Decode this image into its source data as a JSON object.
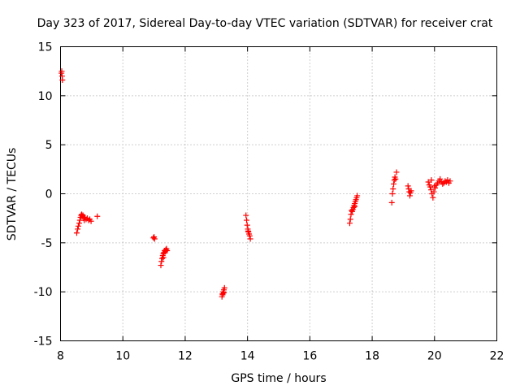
{
  "chart_data": {
    "type": "scatter",
    "title": "Day 323 of 2017, Sidereal Day-to-day VTEC variation (SDTVAR) for receiver crat",
    "xlabel": "GPS time / hours",
    "ylabel": "SDTVAR / TECUs",
    "xlim": [
      8,
      22
    ],
    "ylim": [
      -15,
      15
    ],
    "xticks": [
      8,
      10,
      12,
      14,
      16,
      18,
      20,
      22
    ],
    "yticks": [
      -15,
      -10,
      -5,
      0,
      5,
      10,
      15
    ],
    "xtick_labels": [
      "8",
      "10",
      "12",
      "14",
      "16",
      "18",
      "20",
      "22"
    ],
    "ytick_labels": [
      "-15",
      "-10",
      "-5",
      "0",
      "5",
      "10",
      "15"
    ],
    "grid": true,
    "marker": "+",
    "color": "#ff0000",
    "series": [
      {
        "name": "SDTVAR",
        "points": [
          [
            8.03,
            12.3
          ],
          [
            8.05,
            12.0
          ],
          [
            8.06,
            11.6
          ],
          [
            8.04,
            12.5
          ],
          [
            8.52,
            -4.0
          ],
          [
            8.55,
            -3.6
          ],
          [
            8.57,
            -3.3
          ],
          [
            8.6,
            -3.0
          ],
          [
            8.62,
            -2.7
          ],
          [
            8.64,
            -2.4
          ],
          [
            8.66,
            -2.2
          ],
          [
            8.7,
            -2.3
          ],
          [
            8.74,
            -2.5
          ],
          [
            8.78,
            -2.4
          ],
          [
            8.82,
            -2.6
          ],
          [
            8.86,
            -2.5
          ],
          [
            8.9,
            -2.7
          ],
          [
            8.94,
            -2.6
          ],
          [
            8.98,
            -2.8
          ],
          [
            8.68,
            -2.1
          ],
          [
            8.72,
            -2.2
          ],
          [
            8.76,
            -2.7
          ],
          [
            9.18,
            -2.3
          ],
          [
            10.98,
            -4.5
          ],
          [
            11.0,
            -4.4
          ],
          [
            11.02,
            -4.6
          ],
          [
            11.22,
            -7.3
          ],
          [
            11.24,
            -6.9
          ],
          [
            11.26,
            -6.6
          ],
          [
            11.28,
            -6.3
          ],
          [
            11.3,
            -6.1
          ],
          [
            11.32,
            -6.0
          ],
          [
            11.34,
            -5.8
          ],
          [
            11.36,
            -5.9
          ],
          [
            11.38,
            -5.7
          ],
          [
            11.4,
            -5.6
          ],
          [
            11.42,
            -5.8
          ],
          [
            11.3,
            -6.5
          ],
          [
            13.18,
            -10.5
          ],
          [
            13.2,
            -10.2
          ],
          [
            13.22,
            -10.0
          ],
          [
            13.24,
            -9.8
          ],
          [
            13.26,
            -9.6
          ],
          [
            13.2,
            -10.3
          ],
          [
            13.24,
            -10.1
          ],
          [
            13.95,
            -2.2
          ],
          [
            13.97,
            -2.7
          ],
          [
            13.99,
            -3.2
          ],
          [
            14.01,
            -3.6
          ],
          [
            14.03,
            -3.9
          ],
          [
            14.05,
            -4.1
          ],
          [
            14.07,
            -4.3
          ],
          [
            14.09,
            -4.6
          ],
          [
            14.02,
            -3.8
          ],
          [
            17.28,
            -3.0
          ],
          [
            17.3,
            -2.6
          ],
          [
            17.32,
            -2.1
          ],
          [
            17.34,
            -1.7
          ],
          [
            17.36,
            -1.8
          ],
          [
            17.38,
            -1.6
          ],
          [
            17.4,
            -1.4
          ],
          [
            17.42,
            -1.2
          ],
          [
            17.44,
            -1.0
          ],
          [
            17.46,
            -0.8
          ],
          [
            17.48,
            -0.6
          ],
          [
            17.5,
            -0.4
          ],
          [
            17.52,
            -0.2
          ],
          [
            17.44,
            -1.3
          ],
          [
            18.63,
            -0.9
          ],
          [
            18.65,
            0.0
          ],
          [
            18.67,
            0.5
          ],
          [
            18.69,
            1.0
          ],
          [
            18.71,
            1.4
          ],
          [
            18.73,
            1.7
          ],
          [
            18.75,
            1.5
          ],
          [
            18.78,
            2.2
          ],
          [
            19.15,
            0.8
          ],
          [
            19.17,
            0.5
          ],
          [
            19.19,
            0.2
          ],
          [
            19.21,
            -0.2
          ],
          [
            19.23,
            0.1
          ],
          [
            19.25,
            0.3
          ],
          [
            19.8,
            1.2
          ],
          [
            19.83,
            0.9
          ],
          [
            19.86,
            0.7
          ],
          [
            19.89,
            0.4
          ],
          [
            19.92,
            0.0
          ],
          [
            19.95,
            -0.4
          ],
          [
            19.98,
            0.2
          ],
          [
            20.02,
            0.6
          ],
          [
            20.06,
            0.9
          ],
          [
            20.1,
            1.1
          ],
          [
            20.14,
            1.3
          ],
          [
            20.18,
            1.5
          ],
          [
            20.22,
            1.2
          ],
          [
            20.26,
            1.0
          ],
          [
            20.3,
            1.1
          ],
          [
            20.34,
            1.3
          ],
          [
            20.38,
            1.2
          ],
          [
            20.42,
            1.4
          ],
          [
            20.46,
            1.1
          ],
          [
            20.5,
            1.3
          ],
          [
            19.9,
            1.4
          ],
          [
            20.0,
            0.8
          ]
        ]
      }
    ]
  }
}
